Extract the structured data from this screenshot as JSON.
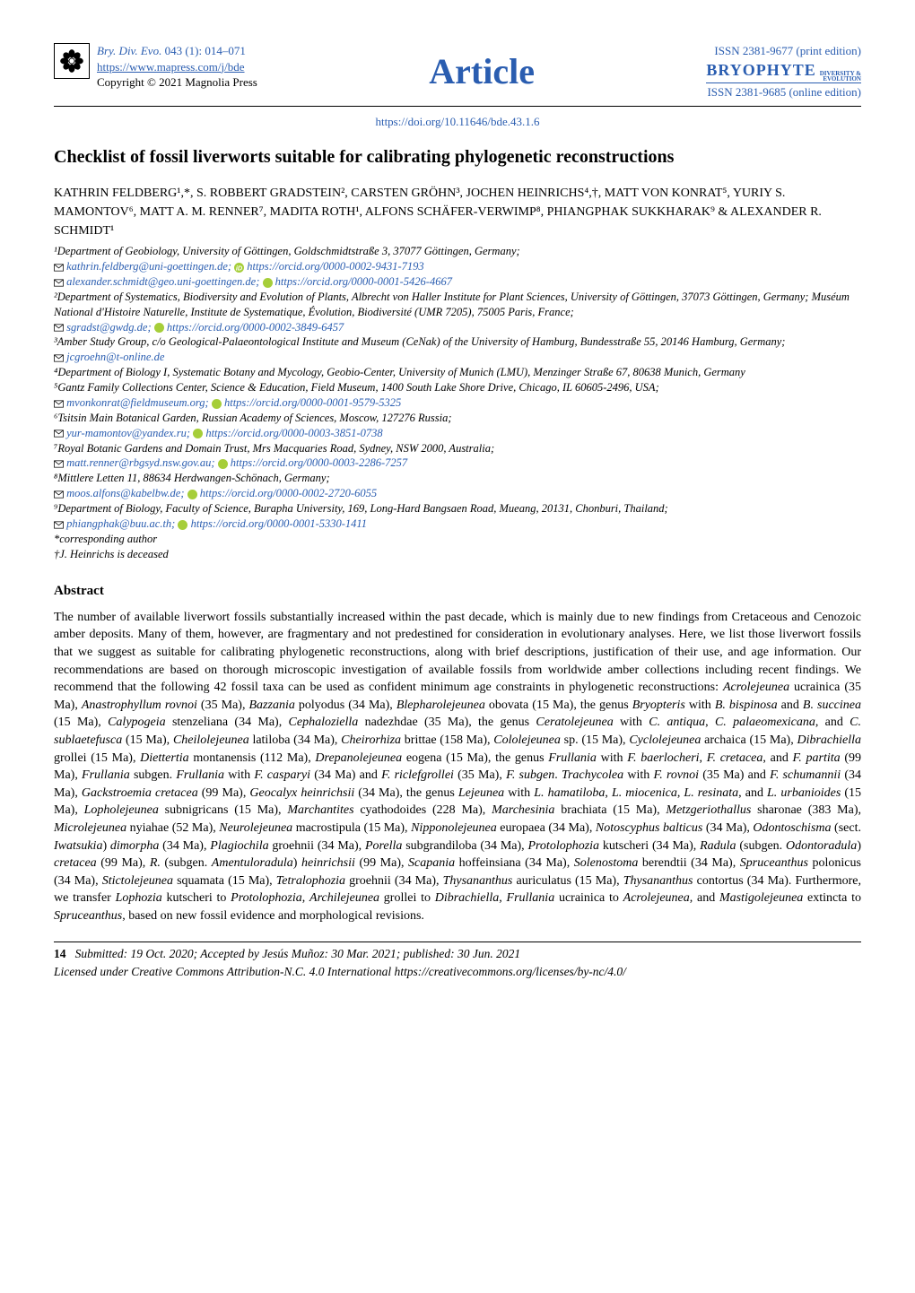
{
  "header": {
    "journal_ref_prefix": "Bry. Div. Evo.",
    "journal_ref_rest": " 043 (1): 014–071",
    "journal_url": "https://www.mapress.com/j/bde",
    "copyright": "Copyright © 2021 Magnolia Press",
    "center_word": "Article",
    "issn_print": "ISSN 2381-9677 (print edition)",
    "journal_logo_main": "BRYOPHYTE",
    "journal_logo_sub1": "DIVERSITY &",
    "journal_logo_sub2": "EVOLUTION",
    "issn_online": "ISSN 2381-9685 (online edition)",
    "doi": "https://doi.org/10.11646/bde.43.1.6"
  },
  "title": "Checklist of fossil liverworts suitable for calibrating phylogenetic reconstructions",
  "authors": "KATHRIN FELDBERG¹,*, S. ROBBERT GRADSTEIN², CARSTEN GRÖHN³, JOCHEN HEINRICHS⁴,†, MATT VON KONRAT⁵, YURIY S. MAMONTOV⁶, MATT A. M. RENNER⁷, MADITA ROTH¹, ALFONS SCHÄFER-VERWIMP⁸, PHIANGPHAK SUKKHARAK⁹ & ALEXANDER R. SCHMIDT¹",
  "affil": {
    "a1": "¹Department of Geobiology, University of Göttingen, Goldschmidtstraße 3, 37077 Göttingen, Germany;",
    "e1a_mail": "kathrin.feldberg@uni-goettingen.de;",
    "e1a_orcid": "https://orcid.org/0000-0002-9431-7193",
    "e1b_mail": "alexander.schmidt@geo.uni-goettingen.de;",
    "e1b_orcid": "https://orcid.org/0000-0001-5426-4667",
    "a2a": "²Department of Systematics, Biodiversity and Evolution of Plants, Albrecht von Haller Institute for Plant Sciences, University of Göttingen, 37073 Göttingen, Germany; Muséum National d'Histoire Naturelle, Institute de Systematique, Évolution, Biodiversité (UMR 7205), 75005 Paris, France;",
    "e2_mail": "sgradst@gwdg.de;",
    "e2_orcid": "https://orcid.org/0000-0002-3849-6457",
    "a3": "³Amber Study Group, c/o Geological-Palaeontological Institute and Museum (CeNak) of the University of Hamburg, Bundesstraße 55, 20146 Hamburg, Germany;",
    "e3_mail": "jcgroehn@t-online.de",
    "a4": "⁴Department of Biology I, Systematic Botany and Mycology, Geobio-Center, University of Munich (LMU), Menzinger Straße 67, 80638 Munich, Germany",
    "a5": "⁵Gantz Family Collections Center, Science & Education, Field Museum, 1400 South Lake Shore Drive, Chicago, IL 60605-2496, USA;",
    "e5_mail": "mvonkonrat@fieldmuseum.org;",
    "e5_orcid": "https://orcid.org/0000-0001-9579-5325",
    "a6": "⁶Tsitsin Main Botanical Garden, Russian Academy of Sciences, Moscow, 127276 Russia;",
    "e6_mail": "yur-mamontov@yandex.ru;",
    "e6_orcid": "https://orcid.org/0000-0003-3851-0738",
    "a7": "⁷Royal Botanic Gardens and Domain Trust, Mrs Macquaries Road, Sydney, NSW 2000, Australia;",
    "e7_mail": "matt.renner@rbgsyd.nsw.gov.au;",
    "e7_orcid": "https://orcid.org/0000-0003-2286-7257",
    "a8": "⁸Mittlere Letten 11, 88634 Herdwangen-Schönach, Germany;",
    "e8_mail": "moos.alfons@kabelbw.de;",
    "e8_orcid": "https://orcid.org/0000-0002-2720-6055",
    "a9": "⁹Department of Biology, Faculty of Science, Burapha University, 169, Long-Hard Bangsaen Road, Mueang, 20131, Chonburi, Thailand;",
    "e9_mail": "phiangphak@buu.ac.th;",
    "e9_orcid": "https://orcid.org/0000-0001-5330-1411",
    "corr": "*corresponding author",
    "deceased": "†J. Heinrichs is deceased"
  },
  "abstract_heading": "Abstract",
  "abstract_body": "The number of available liverwort fossils substantially increased within the past decade, which is mainly due to new findings from Cretaceous and Cenozoic amber deposits. Many of them, however, are fragmentary and not predestined for consideration in evolutionary analyses. Here, we list those liverwort fossils that we suggest as suitable for calibrating phylogenetic reconstructions, along with brief descriptions, justification of their use, and age information. Our recommendations are based on thorough microscopic investigation of available fossils from worldwide amber collections including recent findings. We recommend that the following 42 fossil taxa can be used as confident minimum age constraints in phylogenetic reconstructions: Acrolejeunea ucrainica (35 Ma), Anastrophyllum rovnoi (35 Ma), Bazzania polyodus (34 Ma), Blepharolejeunea obovata (15 Ma), the genus Bryopteris with B. bispinosa and B. succinea (15 Ma), Calypogeia stenzeliana (34 Ma), Cephaloziella nadezhdae (35 Ma), the genus Ceratolejeunea with C. antiqua, C. palaeomexicana, and C. sublaetefusca (15 Ma), Cheilolejeunea latiloba (34 Ma), Cheirorhiza brittae (158 Ma), Cololejeunea sp. (15 Ma), Cyclolejeunea archaica (15 Ma), Dibrachiella grollei (15 Ma), Diettertia montanensis (112 Ma), Drepanolejeunea eogena (15 Ma), the genus Frullania with F. baerlocheri, F. cretacea, and F. partita (99 Ma), Frullania subgen. Frullania with F. casparyi (34 Ma) and F. riclefgrollei (35 Ma), F. subgen. Trachycolea with F. rovnoi (35 Ma) and F. schumannii (34 Ma), Gackstroemia cretacea (99 Ma), Geocalyx heinrichsii (34 Ma), the genus Lejeunea with L. hamatiloba, L. miocenica, L. resinata, and L. urbanioides (15 Ma), Lopholejeunea subnigricans (15 Ma), Marchantites cyathodoides (228 Ma), Marchesinia brachiata (15 Ma), Metzgeriothallus sharonae (383 Ma), Microlejeunea nyiahae (52 Ma), Neurolejeunea macrostipula (15 Ma), Nipponolejeunea europaea (34 Ma), Notoscyphus balticus (34 Ma), Odontoschisma (sect. Iwatsukia) dimorpha (34 Ma), Plagiochila groehnii (34 Ma), Porella subgrandiloba (34 Ma), Protolophozia kutscheri (34 Ma), Radula (subgen. Odontoradula) cretacea (99 Ma), R. (subgen. Amentuloradula) heinrichsii (99 Ma), Scapania hoffeinsiana (34 Ma), Solenostoma berendtii (34 Ma), Spruceanthus polonicus (34 Ma), Stictolejeunea squamata (15 Ma), Tetralophozia groehnii (34 Ma), Thysananthus auriculatus (15 Ma), Thysananthus contortus (34 Ma). Furthermore, we transfer Lophozia kutscheri to Protolophozia, Archilejeunea grollei to Dibrachiella, Frullania ucrainica to Acrolejeunea, and Mastigolejeunea extincta to Spruceanthus, based on new fossil evidence and morphological revisions.",
  "footer": {
    "page_num": "14",
    "submitted_line": "Submitted: 19 Oct. 2020; Accepted by Jesús Muñoz: 30 Mar. 2021; published: 30 Jun. 2021",
    "license_line": "Licensed under Creative Commons Attribution-N.C. 4.0 International https://creativecommons.org/licenses/by-nc/4.0/"
  },
  "colors": {
    "link_blue": "#2a5db0",
    "orcid_green": "#a6ce39",
    "text_black": "#000000",
    "background": "#ffffff"
  }
}
